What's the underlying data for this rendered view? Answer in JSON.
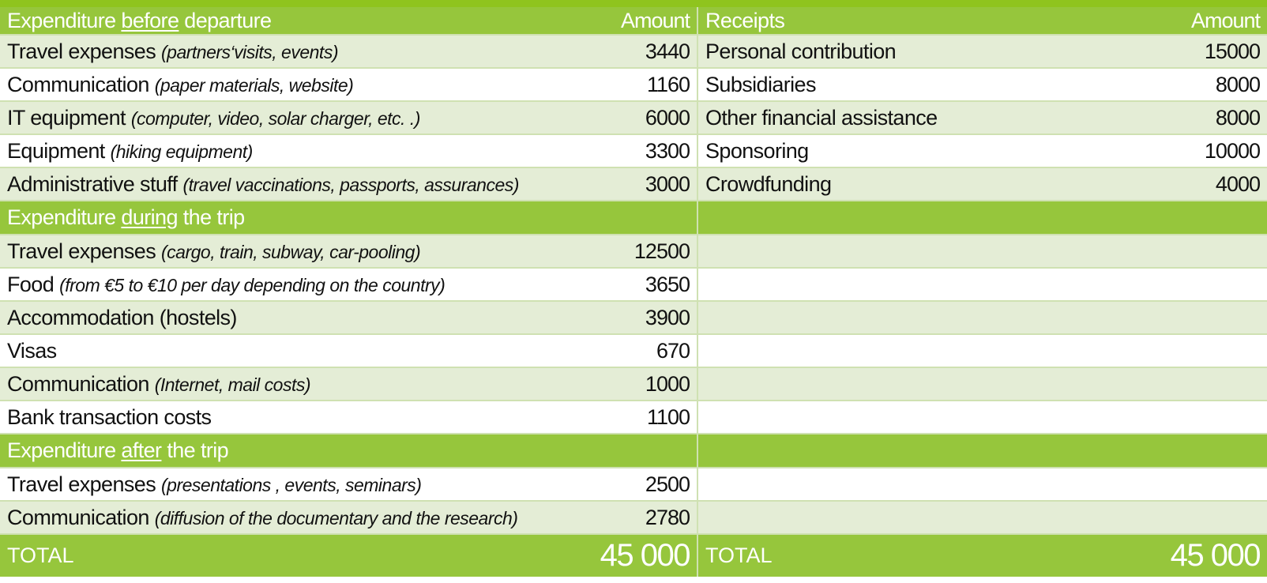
{
  "colors": {
    "header_green": "#96c63c",
    "top_bar_green": "#8fc41e",
    "light_row": "#e4edd6",
    "white_row": "#ffffff",
    "border": "#cfe1b2"
  },
  "expenditure": {
    "before_header": {
      "pre": "Expenditure ",
      "emph": "before",
      "post": " departure",
      "amount_label": "Amount"
    },
    "before_rows": [
      {
        "label": "Travel expenses",
        "note": "(partners‘visits, events)",
        "amount": "3440"
      },
      {
        "label": "Communication",
        "note": "(paper materials, website)",
        "amount": "1160"
      },
      {
        "label": "IT equipment",
        "note": "(computer, video, solar charger, etc. .)",
        "amount": "6000"
      },
      {
        "label": "Equipment",
        "note": "(hiking  equipment)",
        "amount": "3300"
      },
      {
        "label": "Administrative stuff",
        "note": "(travel vaccinations, passports, assurances)",
        "amount": "3000"
      }
    ],
    "during_header": {
      "pre": "Expenditure ",
      "emph": "during",
      "post": " the trip"
    },
    "during_rows": [
      {
        "label": "Travel expenses",
        "note": "(cargo, train, subway, car-pooling)",
        "amount": "12500"
      },
      {
        "label": "Food",
        "note": "(from €5 to €10 per day depending on the country)",
        "amount": "3650"
      },
      {
        "label": "Accommodation (hostels)",
        "note": "",
        "amount": "3900"
      },
      {
        "label": "Visas",
        "note": "",
        "amount": "670"
      },
      {
        "label": "Communication",
        "note": "(Internet, mail costs)",
        "amount": "1000"
      },
      {
        "label": "Bank transaction costs",
        "note": "",
        "amount": "1100"
      }
    ],
    "after_header": {
      "pre": "Expenditure ",
      "emph": "after",
      "post": " the trip"
    },
    "after_rows": [
      {
        "label": "Travel expenses",
        "note": "(presentations , events, seminars)",
        "amount": "2500"
      },
      {
        "label": "Communication",
        "note": "(diffusion of the documentary and the research)",
        "amount": "2780"
      }
    ],
    "total_label": "TOTAL",
    "total_amount": "45 000"
  },
  "receipts": {
    "header": {
      "label": "Receipts",
      "amount_label": "Amount"
    },
    "rows": [
      {
        "label": "Personal contribution",
        "amount": "15000"
      },
      {
        "label": "Subsidiaries",
        "amount": "8000"
      },
      {
        "label": "Other financial assistance",
        "amount": "8000"
      },
      {
        "label": "Sponsoring",
        "amount": "10000"
      },
      {
        "label": "Crowdfunding",
        "amount": "4000"
      }
    ],
    "total_label": "TOTAL",
    "total_amount": "45 000"
  }
}
